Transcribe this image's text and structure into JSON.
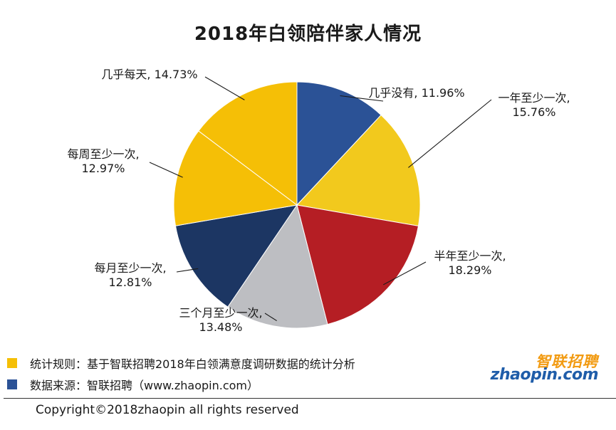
{
  "chart_data": {
    "type": "pie",
    "title": "2018年白领陪伴家人情况",
    "slices": [
      {
        "label": "几乎没有",
        "value": 11.96,
        "display_value": "11.96%",
        "color": "#2b5296"
      },
      {
        "label": "一年至少一次",
        "value": 15.76,
        "display_value": "15.76%",
        "color": "#f2c91d"
      },
      {
        "label": "半年至少一次",
        "value": 18.29,
        "display_value": "18.29%",
        "color": "#b51e24"
      },
      {
        "label": "三个月至少一次",
        "value": 13.48,
        "display_value": "13.48%",
        "color": "#bdbec2"
      },
      {
        "label": "每月至少一次",
        "value": 12.81,
        "display_value": "12.81%",
        "color": "#1c3663"
      },
      {
        "label": "每周至少一次",
        "value": 12.97,
        "display_value": "12.97%",
        "color": "#f5bf06"
      },
      {
        "label": "几乎每天",
        "value": 14.73,
        "display_value": "14.73%",
        "color": "#f5bf06"
      }
    ]
  },
  "notes": {
    "rule_text": "统计规则：基于智联招聘2018年白领满意度调研数据的统计分析",
    "rule_color": "#f5bf06",
    "source_text": "数据来源：智联招聘（www.zhaopin.com）",
    "source_color": "#2b5296"
  },
  "logo": {
    "cn": "智联招聘",
    "en": "zhaopin.com"
  },
  "copyright": "Copyright©2018zhaopin all rights reserved"
}
